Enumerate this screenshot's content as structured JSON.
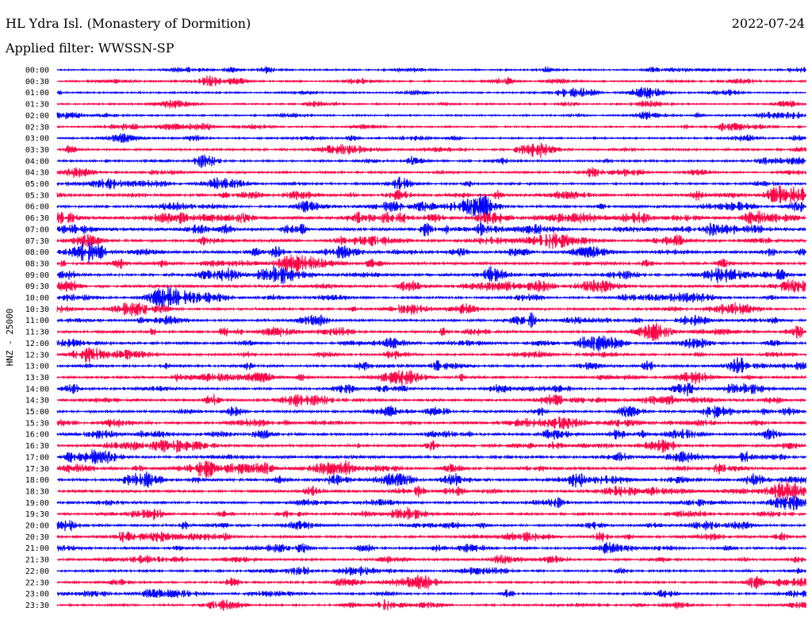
{
  "header": {
    "station": "HL Ydra Isl. (Monastery of Dormition)",
    "filter": "Applied filter: WWSSN-SP",
    "date": "2022-07-24"
  },
  "chart_data": {
    "type": "line",
    "title": "HL Ydra Isl. (Monastery of Dormition)",
    "subtitle": "Applied filter: WWSSN-SP",
    "ylabel": "HNZ - 25000",
    "xlabel": "",
    "grid": false,
    "legend": "none",
    "colors": [
      "#0000ff",
      "#ff0044"
    ],
    "row_labels": [
      "00:00",
      "00:30",
      "01:00",
      "01:30",
      "02:00",
      "02:30",
      "03:00",
      "03:30",
      "04:00",
      "04:30",
      "05:00",
      "05:30",
      "06:00",
      "06:30",
      "07:00",
      "07:30",
      "08:00",
      "08:30",
      "09:00",
      "09:30",
      "10:00",
      "10:30",
      "11:00",
      "11:30",
      "12:00",
      "12:30",
      "13:00",
      "13:30",
      "14:00",
      "14:30",
      "15:00",
      "15:30",
      "16:00",
      "16:30",
      "17:00",
      "17:30",
      "18:00",
      "18:30",
      "19:00",
      "19:30",
      "20:00",
      "20:30",
      "21:00",
      "21:30",
      "22:00",
      "22:30",
      "23:00",
      "23:30"
    ],
    "row_activity": [
      0.18,
      0.2,
      0.2,
      0.22,
      0.2,
      0.2,
      0.22,
      0.35,
      0.3,
      0.3,
      0.35,
      0.55,
      0.5,
      0.7,
      0.75,
      0.6,
      0.6,
      0.55,
      0.6,
      0.55,
      0.45,
      0.45,
      0.45,
      0.45,
      0.45,
      0.4,
      0.45,
      0.45,
      0.45,
      0.45,
      0.45,
      0.5,
      0.55,
      0.5,
      0.5,
      0.6,
      0.6,
      0.5,
      0.45,
      0.4,
      0.4,
      0.45,
      0.4,
      0.4,
      0.3,
      0.35,
      0.3,
      0.3
    ]
  }
}
